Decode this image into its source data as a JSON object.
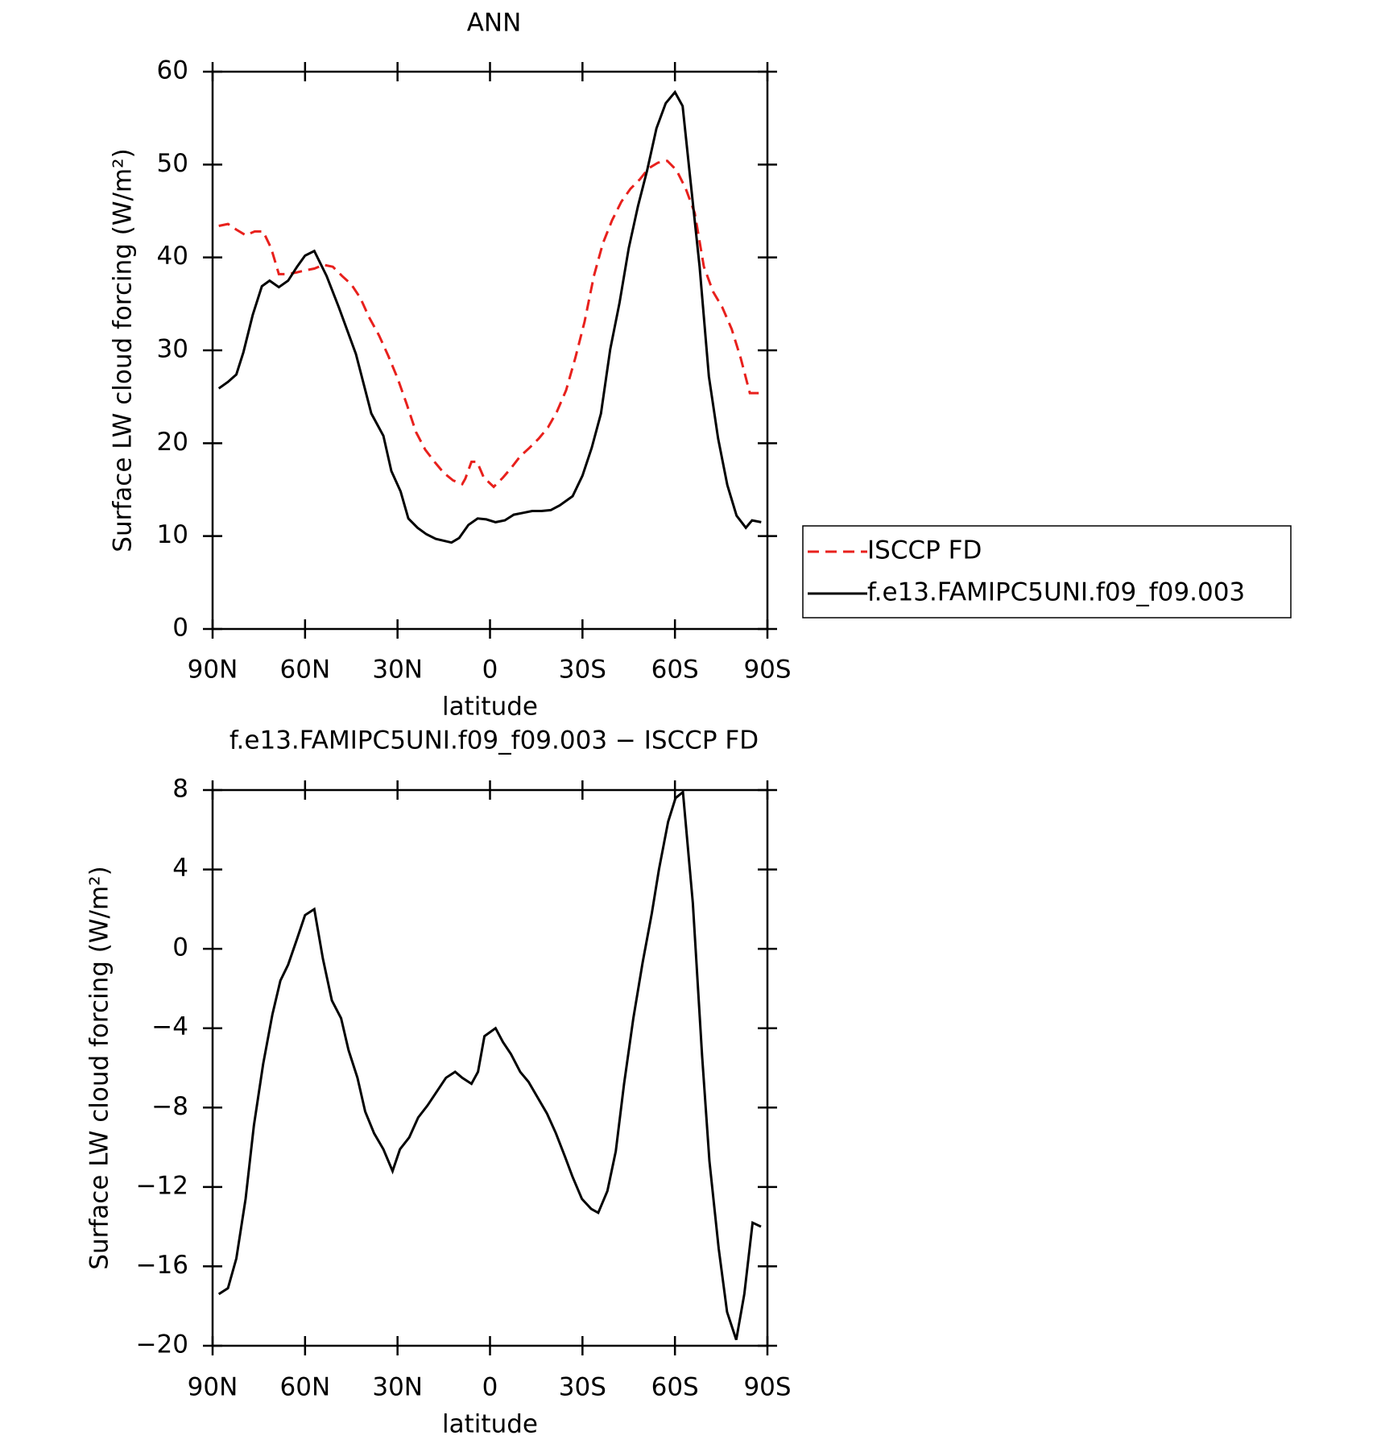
{
  "chart_data": [
    {
      "type": "line",
      "title": "ANN",
      "xlabel": "latitude",
      "ylabel": "Surface LW cloud forcing (W/m²)",
      "xlim": [
        90,
        -90
      ],
      "xticks": [
        {
          "value": 90,
          "label": "90N"
        },
        {
          "value": 60,
          "label": "60N"
        },
        {
          "value": 30,
          "label": "30N"
        },
        0,
        {
          "value": -30,
          "label": "30S"
        },
        {
          "value": -60,
          "label": "60S"
        },
        {
          "value": -90,
          "label": "90S"
        }
      ],
      "ylim": [
        0,
        60
      ],
      "yticks": [
        0,
        10,
        20,
        30,
        40,
        50,
        60
      ],
      "legend": "outside-right",
      "series": [
        {
          "name": "ISCCP FD",
          "color": "#e8201c",
          "dash": true,
          "x": [
            88,
            85,
            82.3,
            79.3,
            76.3,
            73.6,
            71,
            68.5,
            65.5,
            62.6,
            60,
            57,
            54,
            51,
            48,
            45,
            42,
            39.3,
            36,
            33,
            30,
            27,
            24,
            21,
            18,
            15,
            12,
            9,
            8,
            6,
            4.2,
            2,
            -1.2,
            -4.2,
            -6.8,
            -9.8,
            -12.8,
            -15.8,
            -18.8,
            -21.7,
            -24.7,
            -27.7,
            -30.7,
            -33.7,
            -36.6,
            -39.6,
            -42.6,
            -45.6,
            -48.6,
            -51.5,
            -54.5,
            -57.5,
            -60.5,
            -63.5,
            -66.4,
            -69.4,
            -72.4,
            -75.4,
            -78.4,
            -81.3,
            -84.3,
            -87.9
          ],
          "values": [
            43.4,
            43.6,
            43.0,
            42.4,
            42.8,
            42.8,
            41.0,
            38.2,
            38.2,
            38.4,
            38.6,
            38.8,
            39.2,
            39.0,
            38.0,
            37.1,
            35.6,
            33.6,
            31.6,
            29.4,
            27.0,
            24.2,
            21.2,
            19.3,
            18.0,
            16.8,
            16.0,
            15.6,
            16.2,
            18.0,
            18.0,
            16.3,
            15.3,
            16.3,
            17.3,
            18.6,
            19.5,
            20.5,
            21.7,
            23.4,
            25.7,
            29.2,
            33.1,
            38.0,
            41.5,
            44.0,
            46.0,
            47.4,
            48.4,
            49.6,
            50.2,
            50.4,
            49.4,
            47.4,
            44.8,
            39.0,
            36.3,
            34.6,
            32.3,
            29.2,
            25.4,
            25.4
          ]
        },
        {
          "name": "f.e13.FAMIPC5UNI.f09_f09.003",
          "color": "#000000",
          "dash": false,
          "x": [
            88,
            85,
            82.3,
            80,
            77,
            74,
            71.5,
            68.5,
            65.5,
            62.6,
            60,
            57,
            53,
            49,
            43.5,
            38.5,
            34.6,
            32,
            29,
            26.5,
            23.5,
            20.6,
            17.6,
            12.5,
            10,
            7,
            4,
            1.2,
            -1.8,
            -4.8,
            -7.7,
            -10.7,
            -13.7,
            -16.7,
            -19.7,
            -22.6,
            -26.8,
            -30,
            -33,
            -36,
            -39,
            -42,
            -45,
            -48,
            -51,
            -54,
            -57,
            -60,
            -62.5,
            -65,
            -68,
            -71,
            -74,
            -77,
            -80,
            -83,
            -85,
            -88
          ],
          "values": [
            25.9,
            26.6,
            27.4,
            29.8,
            33.8,
            36.9,
            37.5,
            36.8,
            37.5,
            39.0,
            40.2,
            40.7,
            38.0,
            34.6,
            29.6,
            23.2,
            20.8,
            17.0,
            14.8,
            11.9,
            10.9,
            10.2,
            9.7,
            9.3,
            9.8,
            11.2,
            11.9,
            11.8,
            11.5,
            11.7,
            12.3,
            12.5,
            12.7,
            12.7,
            12.8,
            13.3,
            14.3,
            16.5,
            19.5,
            23.2,
            30.1,
            35.1,
            41.0,
            45.5,
            49.4,
            53.9,
            56.6,
            57.8,
            56.3,
            48.4,
            39.0,
            27.2,
            20.5,
            15.5,
            12.2,
            10.9,
            11.7,
            11.5
          ]
        }
      ]
    },
    {
      "type": "line",
      "title": "f.e13.FAMIPC5UNI.f09_f09.003 − ISCCP FD",
      "xlabel": "latitude",
      "ylabel": "Surface LW cloud forcing (W/m²)",
      "xlim": [
        90,
        -90
      ],
      "xticks": [
        {
          "value": 90,
          "label": "90N"
        },
        {
          "value": 60,
          "label": "60N"
        },
        {
          "value": 30,
          "label": "30N"
        },
        0,
        {
          "value": -30,
          "label": "30S"
        },
        {
          "value": -60,
          "label": "60S"
        },
        {
          "value": -90,
          "label": "90S"
        }
      ],
      "ylim": [
        -20,
        8
      ],
      "yticks": [
        {
          "value": -20,
          "label": "−20"
        },
        {
          "value": -16,
          "label": "−16"
        },
        {
          "value": -12,
          "label": "−12"
        },
        {
          "value": -8,
          "label": "−8"
        },
        {
          "value": -4,
          "label": "−4"
        },
        0,
        4,
        8
      ],
      "series": [
        {
          "color": "#000000",
          "dash": false,
          "x": [
            88,
            85,
            82.3,
            79.3,
            76.6,
            73.6,
            70.6,
            68,
            65.5,
            62.6,
            60,
            57,
            54.2,
            51.3,
            48.3,
            45.9,
            43,
            40.5,
            37.6,
            34.6,
            31.6,
            29.2,
            26.2,
            23.3,
            20.3,
            17.3,
            14.3,
            11.3,
            9,
            6,
            3.9,
            1.8,
            -1.8,
            -4.2,
            -6.8,
            -9.8,
            -12.5,
            -15.5,
            -18.5,
            -21.4,
            -24.4,
            -26.8,
            -29.8,
            -32.8,
            -35.1,
            -38.1,
            -40.8,
            -43.5,
            -46.5,
            -49.5,
            -52.5,
            -54.8,
            -57.8,
            -60.2,
            -62.6,
            -65.8,
            -68.8,
            -71.2,
            -74.2,
            -76.9,
            -79.9,
            -82.5,
            -85.2,
            -87.9
          ],
          "values": [
            -17.4,
            -17.1,
            -15.6,
            -12.6,
            -8.9,
            -5.8,
            -3.3,
            -1.6,
            -0.8,
            0.5,
            1.7,
            2.0,
            -0.5,
            -2.6,
            -3.5,
            -5.1,
            -6.5,
            -8.2,
            -9.3,
            -10.1,
            -11.2,
            -10.1,
            -9.5,
            -8.5,
            -7.9,
            -7.2,
            -6.5,
            -6.2,
            -6.5,
            -6.8,
            -6.2,
            -4.4,
            -4.0,
            -4.7,
            -5.3,
            -6.2,
            -6.7,
            -7.5,
            -8.3,
            -9.3,
            -10.5,
            -11.5,
            -12.6,
            -13.1,
            -13.3,
            -12.2,
            -10.2,
            -6.8,
            -3.5,
            -0.7,
            1.8,
            4.0,
            6.4,
            7.6,
            7.9,
            2.3,
            -5.4,
            -10.7,
            -15.1,
            -18.3,
            -19.7,
            -17.4,
            -13.8,
            -14.0
          ]
        }
      ]
    }
  ]
}
